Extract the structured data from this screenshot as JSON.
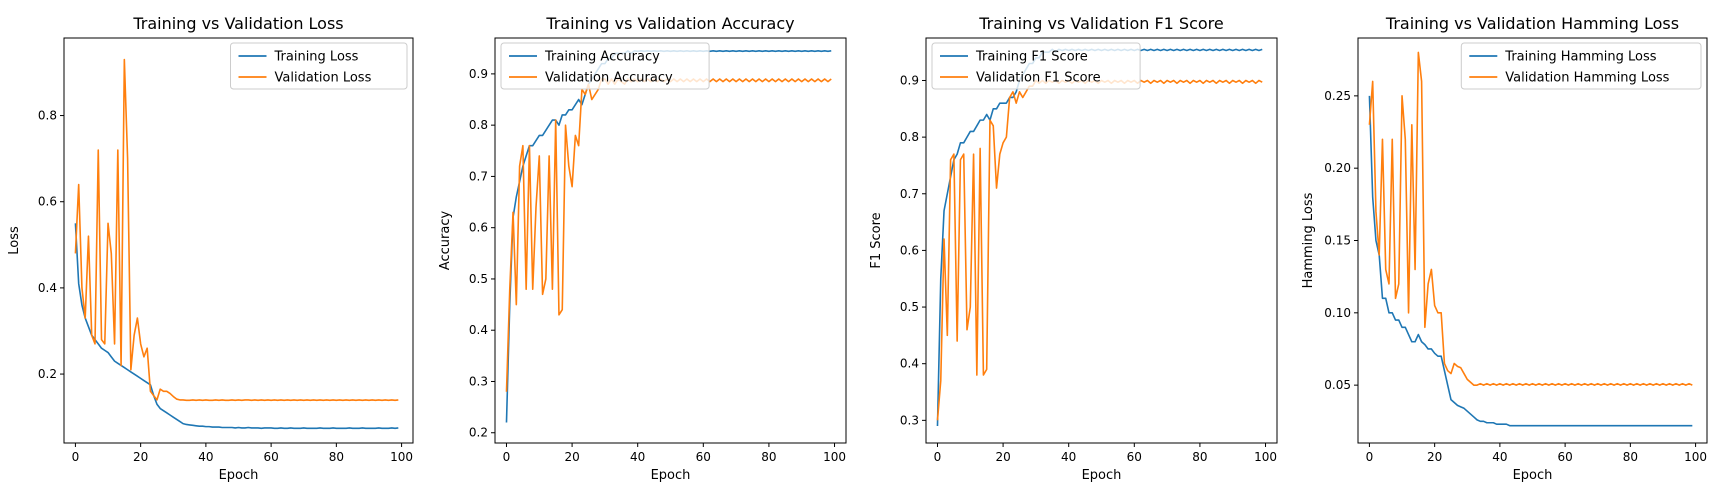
{
  "chart_data": [
    {
      "type": "line",
      "title": "Training vs Validation Loss",
      "xlabel": "Epoch",
      "ylabel": "Loss",
      "xlim": [
        -3.5,
        103.5
      ],
      "ylim": [
        0.04,
        0.98
      ],
      "xticks": [
        0,
        20,
        40,
        60,
        80,
        100
      ],
      "yticks": [
        0.2,
        0.4,
        0.6,
        0.8
      ],
      "legend": "top-right",
      "grid": false,
      "series": [
        {
          "name": "Training Loss",
          "color": "#1f77b4",
          "values": [
            0.55,
            0.41,
            0.36,
            0.33,
            0.31,
            0.29,
            0.28,
            0.27,
            0.26,
            0.255,
            0.25,
            0.24,
            0.23,
            0.225,
            0.22,
            0.215,
            0.21,
            0.205,
            0.2,
            0.195,
            0.19,
            0.185,
            0.18,
            0.175,
            0.15,
            0.13,
            0.12,
            0.115,
            0.11,
            0.105,
            0.1,
            0.095,
            0.09,
            0.085,
            0.083,
            0.082,
            0.081,
            0.08,
            0.079,
            0.079,
            0.078,
            0.078,
            0.077,
            0.077,
            0.077,
            0.076,
            0.076,
            0.076,
            0.076,
            0.075,
            0.076,
            0.075,
            0.075,
            0.076,
            0.075,
            0.075,
            0.075,
            0.074,
            0.075,
            0.075,
            0.075,
            0.074,
            0.074,
            0.075,
            0.074,
            0.074,
            0.075,
            0.074,
            0.074,
            0.074,
            0.075,
            0.074,
            0.074,
            0.074,
            0.074,
            0.075,
            0.074,
            0.074,
            0.074,
            0.075,
            0.074,
            0.074,
            0.074,
            0.074,
            0.075,
            0.074,
            0.074,
            0.074,
            0.075,
            0.074,
            0.074,
            0.074,
            0.074,
            0.075,
            0.074,
            0.074,
            0.074,
            0.075,
            0.074,
            0.075
          ]
        },
        {
          "name": "Validation Loss",
          "color": "#ff7f0e",
          "values": [
            0.48,
            0.64,
            0.4,
            0.33,
            0.52,
            0.29,
            0.27,
            0.72,
            0.28,
            0.27,
            0.55,
            0.48,
            0.27,
            0.72,
            0.22,
            0.93,
            0.7,
            0.21,
            0.29,
            0.33,
            0.27,
            0.24,
            0.26,
            0.16,
            0.15,
            0.14,
            0.165,
            0.16,
            0.16,
            0.155,
            0.148,
            0.142,
            0.14,
            0.14,
            0.139,
            0.139,
            0.14,
            0.139,
            0.14,
            0.139,
            0.14,
            0.139,
            0.139,
            0.14,
            0.139,
            0.14,
            0.139,
            0.139,
            0.14,
            0.139,
            0.14,
            0.139,
            0.14,
            0.14,
            0.139,
            0.14,
            0.139,
            0.14,
            0.139,
            0.14,
            0.139,
            0.14,
            0.139,
            0.14,
            0.139,
            0.14,
            0.139,
            0.14,
            0.139,
            0.14,
            0.139,
            0.14,
            0.139,
            0.14,
            0.139,
            0.14,
            0.139,
            0.14,
            0.139,
            0.14,
            0.139,
            0.14,
            0.139,
            0.14,
            0.139,
            0.14,
            0.139,
            0.14,
            0.139,
            0.14,
            0.139,
            0.14,
            0.139,
            0.14,
            0.139,
            0.14,
            0.139,
            0.14,
            0.139,
            0.14
          ]
        }
      ]
    },
    {
      "type": "line",
      "title": "Training vs Validation Accuracy",
      "xlabel": "Epoch",
      "ylabel": "Accuracy",
      "xlim": [
        -3.5,
        103.5
      ],
      "ylim": [
        0.18,
        0.97
      ],
      "xticks": [
        0,
        20,
        40,
        60,
        80,
        100
      ],
      "yticks": [
        0.2,
        0.3,
        0.4,
        0.5,
        0.6,
        0.7,
        0.8,
        0.9
      ],
      "legend": "top-left",
      "grid": false,
      "series": [
        {
          "name": "Training Accuracy",
          "color": "#1f77b4",
          "values": [
            0.22,
            0.45,
            0.62,
            0.66,
            0.69,
            0.72,
            0.74,
            0.76,
            0.76,
            0.77,
            0.78,
            0.78,
            0.79,
            0.8,
            0.81,
            0.81,
            0.8,
            0.82,
            0.82,
            0.83,
            0.83,
            0.84,
            0.85,
            0.84,
            0.86,
            0.88,
            0.89,
            0.9,
            0.91,
            0.92,
            0.92,
            0.93,
            0.93,
            0.94,
            0.94,
            0.94,
            0.94,
            0.945,
            0.94,
            0.945,
            0.944,
            0.945,
            0.944,
            0.945,
            0.944,
            0.945,
            0.944,
            0.945,
            0.944,
            0.945,
            0.944,
            0.945,
            0.944,
            0.945,
            0.944,
            0.945,
            0.944,
            0.945,
            0.944,
            0.945,
            0.944,
            0.945,
            0.944,
            0.945,
            0.944,
            0.945,
            0.944,
            0.945,
            0.944,
            0.945,
            0.944,
            0.945,
            0.944,
            0.945,
            0.944,
            0.945,
            0.944,
            0.945,
            0.944,
            0.945,
            0.944,
            0.945,
            0.944,
            0.945,
            0.944,
            0.945,
            0.944,
            0.945,
            0.944,
            0.945,
            0.944,
            0.945,
            0.944,
            0.945,
            0.944,
            0.945,
            0.944,
            0.945,
            0.944,
            0.945
          ]
        },
        {
          "name": "Validation Accuracy",
          "color": "#ff7f0e",
          "values": [
            0.28,
            0.48,
            0.63,
            0.45,
            0.72,
            0.76,
            0.48,
            0.76,
            0.48,
            0.64,
            0.74,
            0.47,
            0.5,
            0.74,
            0.48,
            0.81,
            0.43,
            0.44,
            0.8,
            0.72,
            0.68,
            0.78,
            0.76,
            0.87,
            0.86,
            0.88,
            0.85,
            0.86,
            0.87,
            0.89,
            0.89,
            0.88,
            0.89,
            0.88,
            0.89,
            0.885,
            0.88,
            0.89,
            0.885,
            0.89,
            0.885,
            0.89,
            0.885,
            0.89,
            0.885,
            0.89,
            0.885,
            0.89,
            0.885,
            0.89,
            0.885,
            0.89,
            0.885,
            0.89,
            0.885,
            0.89,
            0.885,
            0.89,
            0.885,
            0.89,
            0.885,
            0.89,
            0.885,
            0.89,
            0.885,
            0.89,
            0.885,
            0.89,
            0.885,
            0.89,
            0.885,
            0.89,
            0.885,
            0.89,
            0.885,
            0.89,
            0.885,
            0.89,
            0.885,
            0.89,
            0.885,
            0.89,
            0.885,
            0.89,
            0.885,
            0.89,
            0.885,
            0.89,
            0.885,
            0.89,
            0.885,
            0.89,
            0.885,
            0.89,
            0.885,
            0.89,
            0.885,
            0.89,
            0.885,
            0.89
          ]
        }
      ]
    },
    {
      "type": "line",
      "title": "Training vs Validation F1 Score",
      "xlabel": "Epoch",
      "ylabel": "F1 Score",
      "xlim": [
        -3.5,
        103.5
      ],
      "ylim": [
        0.26,
        0.975
      ],
      "xticks": [
        0,
        20,
        40,
        60,
        80,
        100
      ],
      "yticks": [
        0.3,
        0.4,
        0.5,
        0.6,
        0.7,
        0.8,
        0.9
      ],
      "legend": "top-left",
      "grid": false,
      "series": [
        {
          "name": "Training F1 Score",
          "color": "#1f77b4",
          "values": [
            0.29,
            0.55,
            0.67,
            0.7,
            0.73,
            0.76,
            0.77,
            0.79,
            0.79,
            0.8,
            0.81,
            0.81,
            0.82,
            0.83,
            0.83,
            0.84,
            0.83,
            0.85,
            0.85,
            0.86,
            0.86,
            0.86,
            0.87,
            0.87,
            0.88,
            0.9,
            0.91,
            0.92,
            0.93,
            0.93,
            0.94,
            0.94,
            0.95,
            0.95,
            0.95,
            0.955,
            0.95,
            0.955,
            0.953,
            0.955,
            0.953,
            0.955,
            0.953,
            0.955,
            0.953,
            0.955,
            0.953,
            0.955,
            0.953,
            0.955,
            0.953,
            0.955,
            0.953,
            0.955,
            0.953,
            0.955,
            0.953,
            0.955,
            0.953,
            0.955,
            0.953,
            0.955,
            0.953,
            0.955,
            0.953,
            0.955,
            0.953,
            0.955,
            0.953,
            0.955,
            0.953,
            0.955,
            0.953,
            0.955,
            0.953,
            0.955,
            0.953,
            0.955,
            0.953,
            0.955,
            0.953,
            0.955,
            0.953,
            0.955,
            0.953,
            0.955,
            0.953,
            0.955,
            0.953,
            0.955,
            0.953,
            0.955,
            0.953,
            0.955,
            0.953,
            0.955,
            0.953,
            0.955,
            0.953,
            0.955
          ]
        },
        {
          "name": "Validation F1 Score",
          "color": "#ff7f0e",
          "values": [
            0.3,
            0.37,
            0.62,
            0.45,
            0.76,
            0.77,
            0.44,
            0.76,
            0.77,
            0.46,
            0.5,
            0.77,
            0.38,
            0.78,
            0.38,
            0.39,
            0.83,
            0.82,
            0.71,
            0.77,
            0.79,
            0.8,
            0.87,
            0.88,
            0.86,
            0.88,
            0.87,
            0.88,
            0.89,
            0.89,
            0.9,
            0.895,
            0.9,
            0.895,
            0.9,
            0.897,
            0.9,
            0.895,
            0.9,
            0.897,
            0.9,
            0.895,
            0.9,
            0.897,
            0.9,
            0.895,
            0.9,
            0.897,
            0.9,
            0.895,
            0.9,
            0.897,
            0.9,
            0.895,
            0.9,
            0.897,
            0.9,
            0.895,
            0.9,
            0.897,
            0.9,
            0.895,
            0.9,
            0.897,
            0.9,
            0.895,
            0.9,
            0.897,
            0.9,
            0.895,
            0.9,
            0.897,
            0.9,
            0.895,
            0.9,
            0.897,
            0.9,
            0.895,
            0.9,
            0.897,
            0.9,
            0.895,
            0.9,
            0.897,
            0.9,
            0.895,
            0.9,
            0.897,
            0.9,
            0.895,
            0.9,
            0.897,
            0.9,
            0.895,
            0.9,
            0.897,
            0.9,
            0.895,
            0.9,
            0.897
          ]
        }
      ]
    },
    {
      "type": "line",
      "title": "Training vs Validation Hamming Loss",
      "xlabel": "Epoch",
      "ylabel": "Hamming Loss",
      "xlim": [
        -3.5,
        103.5
      ],
      "ylim": [
        0.01,
        0.29
      ],
      "xticks": [
        0,
        20,
        40,
        60,
        80,
        100
      ],
      "yticks": [
        0.05,
        0.1,
        0.15,
        0.2,
        0.25
      ],
      "legend": "top-right",
      "grid": false,
      "series": [
        {
          "name": "Training Hamming Loss",
          "color": "#1f77b4",
          "values": [
            0.25,
            0.18,
            0.15,
            0.14,
            0.11,
            0.11,
            0.1,
            0.1,
            0.095,
            0.095,
            0.09,
            0.09,
            0.085,
            0.08,
            0.08,
            0.085,
            0.08,
            0.078,
            0.075,
            0.075,
            0.072,
            0.07,
            0.07,
            0.06,
            0.05,
            0.04,
            0.038,
            0.036,
            0.035,
            0.034,
            0.032,
            0.03,
            0.028,
            0.026,
            0.025,
            0.025,
            0.024,
            0.024,
            0.024,
            0.023,
            0.023,
            0.023,
            0.023,
            0.022,
            0.022,
            0.022,
            0.022,
            0.022,
            0.022,
            0.022,
            0.022,
            0.022,
            0.022,
            0.022,
            0.022,
            0.022,
            0.022,
            0.022,
            0.022,
            0.022,
            0.022,
            0.022,
            0.022,
            0.022,
            0.022,
            0.022,
            0.022,
            0.022,
            0.022,
            0.022,
            0.022,
            0.022,
            0.022,
            0.022,
            0.022,
            0.022,
            0.022,
            0.022,
            0.022,
            0.022,
            0.022,
            0.022,
            0.022,
            0.022,
            0.022,
            0.022,
            0.022,
            0.022,
            0.022,
            0.022,
            0.022,
            0.022,
            0.022,
            0.022,
            0.022,
            0.022,
            0.022,
            0.022,
            0.022,
            0.022
          ]
        },
        {
          "name": "Validation Hamming Loss",
          "color": "#ff7f0e",
          "values": [
            0.23,
            0.26,
            0.17,
            0.14,
            0.22,
            0.13,
            0.12,
            0.22,
            0.11,
            0.12,
            0.25,
            0.22,
            0.1,
            0.23,
            0.13,
            0.28,
            0.26,
            0.09,
            0.12,
            0.13,
            0.105,
            0.1,
            0.1,
            0.065,
            0.06,
            0.058,
            0.065,
            0.063,
            0.062,
            0.058,
            0.054,
            0.052,
            0.05,
            0.05,
            0.051,
            0.05,
            0.051,
            0.05,
            0.051,
            0.05,
            0.051,
            0.05,
            0.051,
            0.05,
            0.051,
            0.05,
            0.051,
            0.05,
            0.051,
            0.05,
            0.051,
            0.05,
            0.051,
            0.05,
            0.051,
            0.05,
            0.051,
            0.05,
            0.051,
            0.05,
            0.051,
            0.05,
            0.051,
            0.05,
            0.051,
            0.05,
            0.051,
            0.05,
            0.051,
            0.05,
            0.051,
            0.05,
            0.051,
            0.05,
            0.051,
            0.05,
            0.051,
            0.05,
            0.051,
            0.05,
            0.051,
            0.05,
            0.051,
            0.05,
            0.051,
            0.05,
            0.051,
            0.05,
            0.051,
            0.05,
            0.051,
            0.05,
            0.051,
            0.05,
            0.051,
            0.05,
            0.051,
            0.05,
            0.051,
            0.05
          ]
        }
      ]
    }
  ]
}
